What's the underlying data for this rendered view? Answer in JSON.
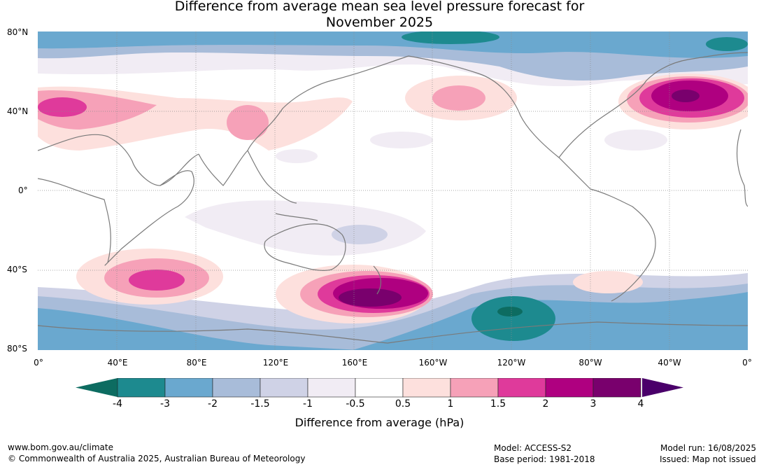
{
  "title_line1": "Difference from average mean sea level pressure forecast for",
  "title_line2": "November 2025",
  "lat_labels": [
    "80°N",
    "40°N",
    "0°",
    "40°S",
    "80°S"
  ],
  "lon_labels": [
    "0°",
    "40°E",
    "80°E",
    "120°E",
    "160°E",
    "160°W",
    "120°W",
    "80°W",
    "40°W",
    "0°"
  ],
  "legend": {
    "ticks": [
      "-4",
      "-3",
      "-2",
      "-1.5",
      "-1",
      "-0.5",
      "0.5",
      "1",
      "1.5",
      "2",
      "3",
      "4"
    ],
    "colors": [
      "#1d8a8f",
      "#6aa8cf",
      "#a8bcd9",
      "#cfd2e6",
      "#f1ecf4",
      "#ffffff",
      "#fde0dd",
      "#f6a1b8",
      "#df3a9b",
      "#af0080",
      "#79006d"
    ],
    "under_color": "#0d6c61",
    "over_color": "#4a006a",
    "label": "Difference from average (hPa)"
  },
  "footer": {
    "url": "www.bom.gov.au/climate",
    "copyright": "© Commonwealth of Australia 2025, Australian Bureau of Meteorology",
    "model": "Model: ACCESS-S2",
    "base_period": "Base period: 1981-2018",
    "model_run": "Model run: 16/08/2025",
    "issued": "Issued: Map not issued"
  }
}
